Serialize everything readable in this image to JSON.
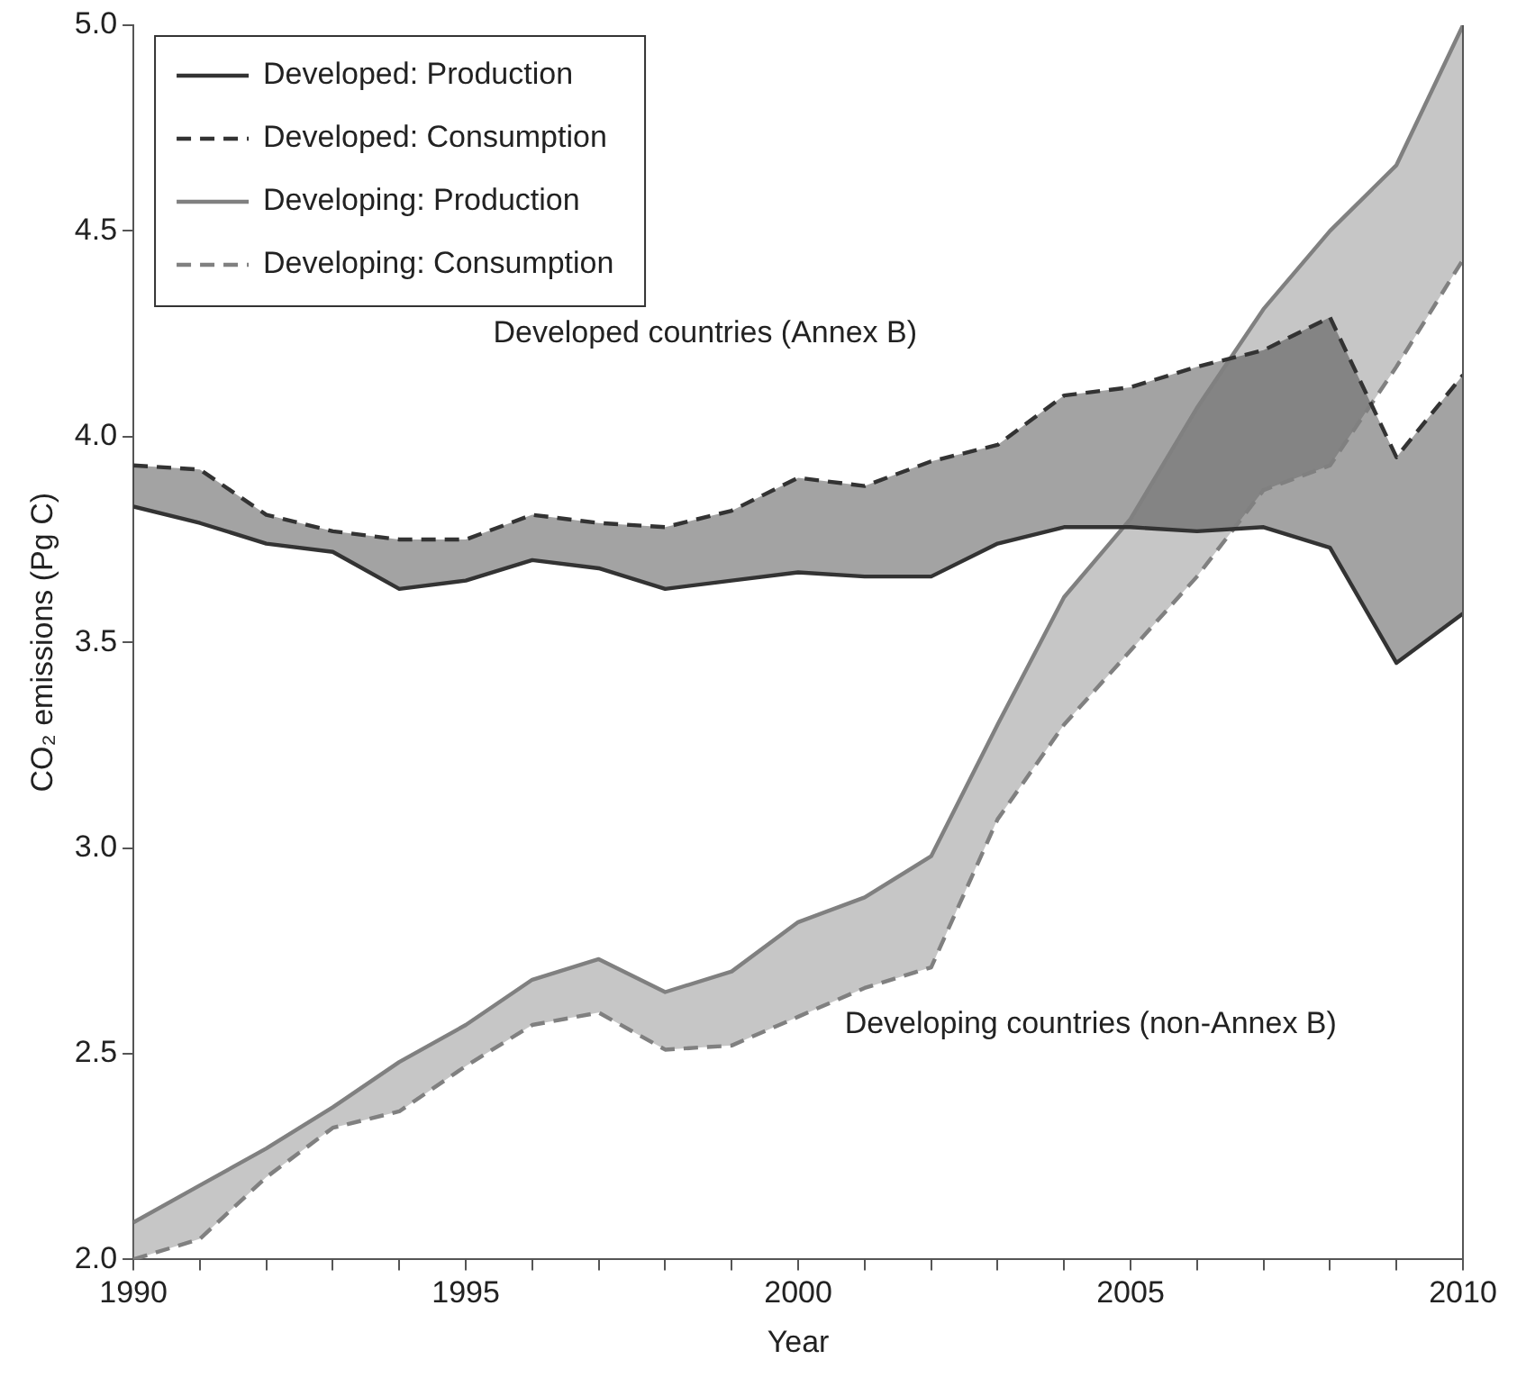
{
  "chart_data": {
    "type": "line",
    "xlabel": "Year",
    "ylabel": "CO₂ emissions (Pg C)",
    "x": [
      1990,
      1991,
      1992,
      1993,
      1994,
      1995,
      1996,
      1997,
      1998,
      1999,
      2000,
      2001,
      2002,
      2003,
      2004,
      2005,
      2006,
      2007,
      2008,
      2009,
      2010
    ],
    "series": [
      {
        "name": "Developed: Production",
        "color": "#333333",
        "line_style": "solid",
        "values": [
          3.83,
          3.79,
          3.74,
          3.72,
          3.63,
          3.65,
          3.7,
          3.68,
          3.63,
          3.65,
          3.67,
          3.66,
          3.66,
          3.74,
          3.78,
          3.78,
          3.77,
          3.78,
          3.73,
          3.45,
          3.57
        ],
        "lower": [
          3.83,
          3.79,
          3.74,
          3.72,
          3.63,
          3.65,
          3.7,
          3.68,
          3.63,
          3.65,
          3.67,
          3.66,
          3.66,
          3.74,
          3.78,
          3.78,
          3.77,
          3.78,
          3.73,
          3.45,
          3.57
        ],
        "upper": [
          3.93,
          3.92,
          3.81,
          3.77,
          3.75,
          3.75,
          3.81,
          3.79,
          3.78,
          3.82,
          3.9,
          3.88,
          3.94,
          3.98,
          4.1,
          4.12,
          4.17,
          4.21,
          4.29,
          3.95,
          4.15
        ]
      },
      {
        "name": "Developed: Consumption",
        "color": "#333333",
        "line_style": "dashed",
        "values": [
          3.93,
          3.92,
          3.81,
          3.77,
          3.75,
          3.75,
          3.81,
          3.79,
          3.78,
          3.82,
          3.9,
          3.88,
          3.94,
          3.98,
          4.1,
          4.12,
          4.17,
          4.21,
          4.29,
          3.95,
          4.15
        ]
      },
      {
        "name": "Developing: Production",
        "color": "#808080",
        "line_style": "solid",
        "values": [
          2.09,
          2.18,
          2.27,
          2.37,
          2.48,
          2.57,
          2.68,
          2.73,
          2.65,
          2.7,
          2.82,
          2.88,
          2.98,
          3.3,
          3.61,
          3.8,
          4.07,
          4.31,
          4.5,
          4.66,
          5.0
        ],
        "lower": [
          2.0,
          2.05,
          2.2,
          2.32,
          2.36,
          2.47,
          2.57,
          2.6,
          2.51,
          2.52,
          2.59,
          2.66,
          2.71,
          3.07,
          3.3,
          3.48,
          3.66,
          3.87,
          3.93,
          4.17,
          4.43
        ],
        "upper": [
          2.09,
          2.18,
          2.27,
          2.37,
          2.48,
          2.57,
          2.68,
          2.73,
          2.65,
          2.7,
          2.82,
          2.88,
          2.98,
          3.3,
          3.61,
          3.8,
          4.07,
          4.31,
          4.5,
          4.66,
          5.0
        ]
      },
      {
        "name": "Developing: Consumption",
        "color": "#808080",
        "line_style": "dashed",
        "values": [
          2.0,
          2.05,
          2.2,
          2.32,
          2.36,
          2.47,
          2.57,
          2.6,
          2.51,
          2.52,
          2.59,
          2.66,
          2.71,
          3.07,
          3.3,
          3.48,
          3.66,
          3.87,
          3.93,
          4.17,
          4.43
        ]
      }
    ],
    "annotations": [
      "Developed countries (Annex B)",
      "Developing countries (non-Annex B)"
    ],
    "xlim": [
      1990,
      2010
    ],
    "xticks": [
      1990,
      {
        "value": 1991,
        "label": null
      },
      {
        "value": 1992,
        "label": null
      },
      {
        "value": 1993,
        "label": null
      },
      {
        "value": 1994,
        "label": null
      },
      1995,
      {
        "value": 1996,
        "label": null
      },
      {
        "value": 1997,
        "label": null
      },
      {
        "value": 1998,
        "label": null
      },
      {
        "value": 1999,
        "label": null
      },
      2000,
      {
        "value": 2001,
        "label": null
      },
      {
        "value": 2002,
        "label": null
      },
      {
        "value": 2003,
        "label": null
      },
      {
        "value": 2004,
        "label": null
      },
      2005,
      {
        "value": 2006,
        "label": null
      },
      {
        "value": 2007,
        "label": null
      },
      {
        "value": 2008,
        "label": null
      },
      {
        "value": 2009,
        "label": null
      },
      2010
    ],
    "ylim": [
      2,
      5
    ],
    "yticks": [
      {
        "value": 2,
        "label": "2.0"
      },
      {
        "value": 2.5,
        "label": "2.5"
      },
      {
        "value": 3,
        "label": "3.0"
      },
      {
        "value": 3.5,
        "label": "3.5"
      },
      {
        "value": 4,
        "label": "4.0"
      },
      {
        "value": 4.5,
        "label": "4.5"
      },
      {
        "value": 5,
        "label": "5.0"
      }
    ],
    "grid": false,
    "legend": "top left",
    "marker": "none"
  }
}
